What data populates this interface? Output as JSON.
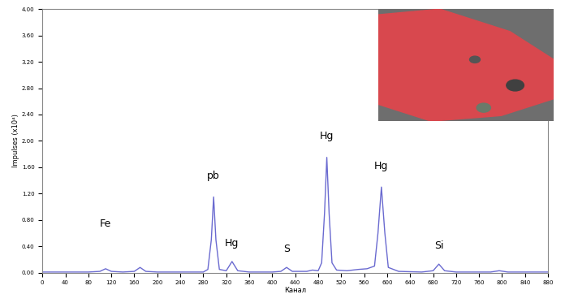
{
  "chart_data": {
    "type": "line",
    "x_label": "Канал",
    "y_label": "Impulses (x10⁴)",
    "xlim": [
      0,
      880
    ],
    "ylim": [
      0,
      4.0
    ],
    "xticks": [
      0,
      40,
      80,
      120,
      160,
      200,
      240,
      280,
      320,
      360,
      400,
      440,
      480,
      520,
      560,
      600,
      640,
      680,
      720,
      760,
      800,
      840,
      880
    ],
    "yticks": [
      {
        "value": 0,
        "label": "0.00"
      },
      {
        "value": 0.4,
        "label": "0.40"
      },
      {
        "value": 0.8,
        "label": "0.80"
      },
      {
        "value": 1.2,
        "label": "1.20"
      },
      {
        "value": 1.6,
        "label": "1.60"
      },
      {
        "value": 2.0,
        "label": "2.00"
      },
      {
        "value": 2.4,
        "label": "2.40"
      },
      {
        "value": 2.8,
        "label": "2.80"
      },
      {
        "value": 3.2,
        "label": "3.20"
      },
      {
        "value": 3.6,
        "label": "3.60"
      },
      {
        "value": 4.0,
        "label": "4.00"
      }
    ],
    "grid": false,
    "color": "#6a6ad0",
    "x": [
      0,
      40,
      80,
      100,
      110,
      120,
      140,
      160,
      170,
      180,
      200,
      240,
      280,
      288,
      294,
      298,
      302,
      308,
      320,
      330,
      340,
      360,
      400,
      415,
      425,
      435,
      460,
      470,
      480,
      486,
      491,
      495,
      499,
      504,
      512,
      530,
      550,
      565,
      578,
      584,
      590,
      596,
      602,
      620,
      660,
      680,
      690,
      700,
      720,
      780,
      795,
      810,
      840,
      880
    ],
    "values": [
      0.01,
      0.01,
      0.01,
      0.02,
      0.06,
      0.02,
      0.01,
      0.02,
      0.08,
      0.02,
      0.01,
      0.01,
      0.01,
      0.05,
      0.5,
      1.15,
      0.5,
      0.05,
      0.03,
      0.17,
      0.03,
      0.01,
      0.01,
      0.02,
      0.08,
      0.02,
      0.02,
      0.04,
      0.03,
      0.15,
      0.9,
      1.75,
      0.9,
      0.15,
      0.04,
      0.03,
      0.05,
      0.06,
      0.1,
      0.6,
      1.3,
      0.6,
      0.08,
      0.02,
      0.01,
      0.03,
      0.13,
      0.03,
      0.01,
      0.01,
      0.03,
      0.01,
      0.01,
      0.01
    ],
    "annotations": [
      {
        "text": "Fe",
        "x": 110
      },
      {
        "text": "pb",
        "x": 298
      },
      {
        "text": "Hg",
        "x": 330
      },
      {
        "text": "S",
        "x": 425
      },
      {
        "text": "Hg",
        "x": 495
      },
      {
        "text": "Hg",
        "x": 590
      },
      {
        "text": "Si",
        "x": 690
      }
    ]
  }
}
